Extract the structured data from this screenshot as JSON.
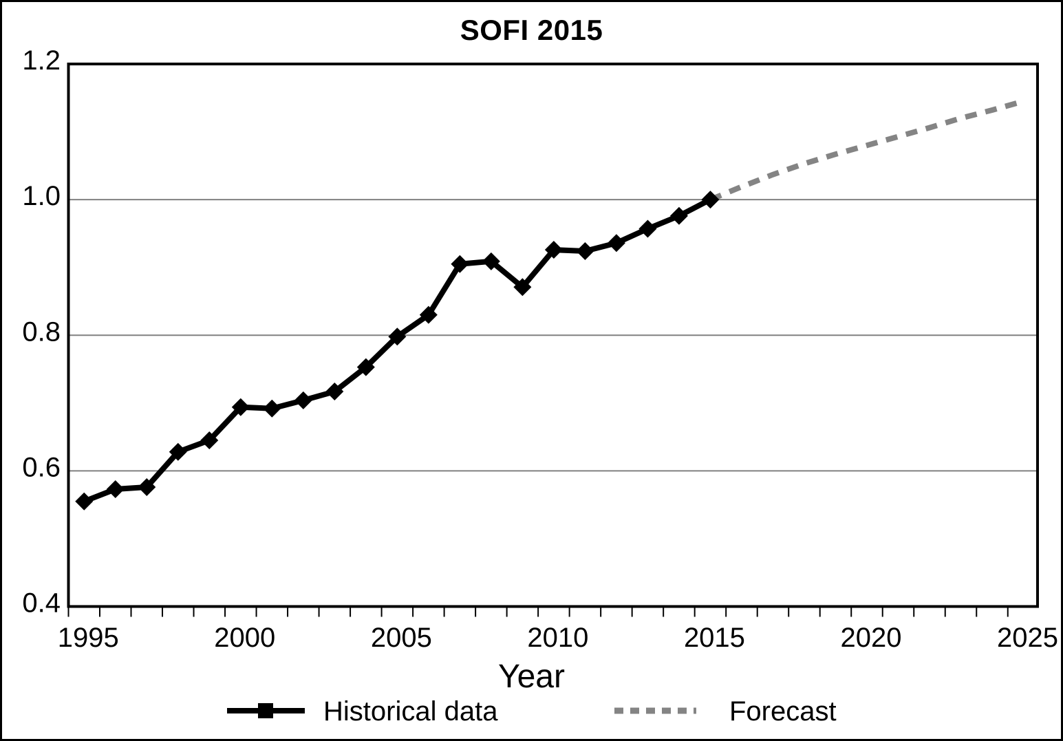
{
  "page_title": "SOFI 2015",
  "chart_data": {
    "type": "line",
    "title": "SOFI 2015",
    "xlabel": "Year",
    "ylabel": "",
    "xlim": [
      1994.5,
      2025.45
    ],
    "ylim": [
      0.4,
      1.2
    ],
    "x_ticks": [
      1995,
      2000,
      2005,
      2010,
      2015,
      2020,
      2025
    ],
    "x_minor_tick_step": 1,
    "y_ticks": [
      0.4,
      0.6,
      0.8,
      1.0,
      1.2
    ],
    "y_tick_labels": [
      "0.4",
      "0.6",
      "0.8",
      "1.0",
      "1.2"
    ],
    "y_gridlines": [
      0.6,
      0.8,
      1.0
    ],
    "grid": "horizontal",
    "legend_position": "bottom",
    "frame_color": "#000000",
    "gridline_color": "#808080",
    "series": [
      {
        "name": "Historical data",
        "color": "#000000",
        "style": "solid",
        "marker": "diamond",
        "legend_marker": "square",
        "x": [
          1995,
          1996,
          1997,
          1998,
          1999,
          2000,
          2001,
          2002,
          2003,
          2004,
          2005,
          2006,
          2007,
          2008,
          2009,
          2010,
          2011,
          2012,
          2013,
          2014,
          2015
        ],
        "values": [
          0.555,
          0.573,
          0.576,
          0.628,
          0.645,
          0.694,
          0.692,
          0.704,
          0.717,
          0.753,
          0.798,
          0.83,
          0.905,
          0.909,
          0.871,
          0.926,
          0.924,
          0.936,
          0.957,
          0.976,
          1.0
        ]
      },
      {
        "name": "Forecast",
        "color": "#848484",
        "style": "dashed",
        "marker": "none",
        "legend_marker": "none",
        "x": [
          2015,
          2016,
          2017,
          2018,
          2019,
          2020,
          2021,
          2022,
          2023,
          2024,
          2025
        ],
        "values": [
          1.0,
          1.019,
          1.037,
          1.053,
          1.067,
          1.08,
          1.093,
          1.106,
          1.12,
          1.132,
          1.145
        ]
      }
    ]
  }
}
